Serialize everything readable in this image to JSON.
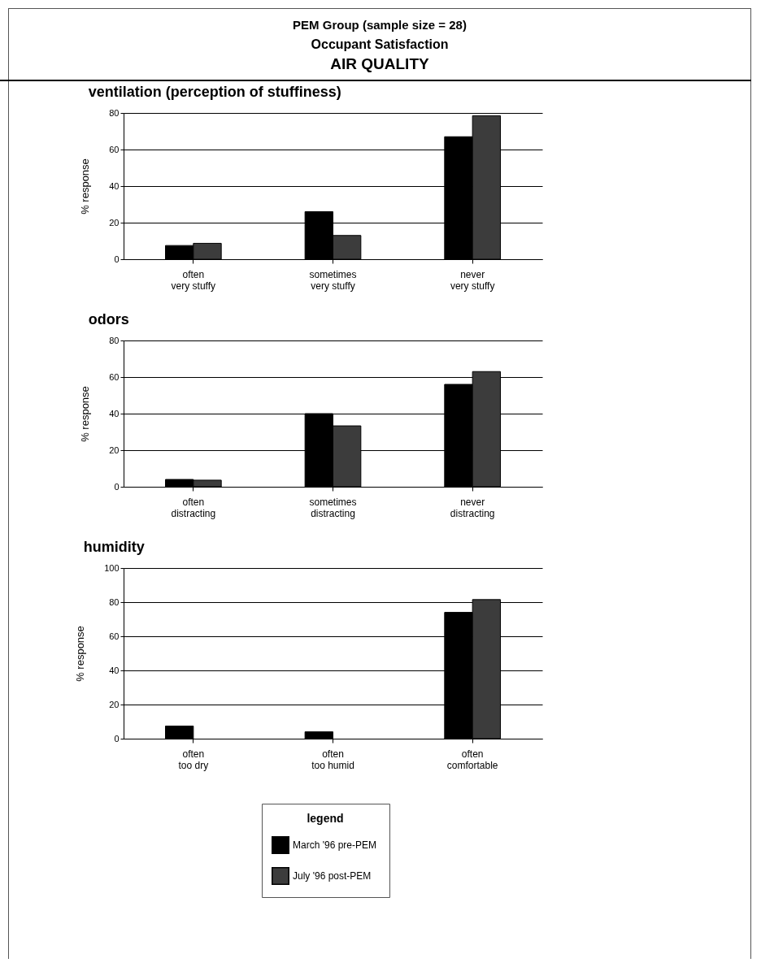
{
  "chart_data": [
    {
      "type": "bar",
      "title": "ventilation (perception of stuffiness)",
      "annotations": [
        "PEM Group (sample size = 28)",
        "Occupant Satisfaction",
        "AIR QUALITY"
      ],
      "ylabel": "%  response",
      "categories": [
        "often very stuffy",
        "sometimes very stuffy",
        "never very stuffy"
      ],
      "series": [
        {
          "color": "#000000",
          "values": [
            7.5,
            26,
            67
          ]
        },
        {
          "color": "#3c3c3c",
          "values": [
            8.7,
            13,
            78.5
          ]
        }
      ],
      "ylim": [
        0,
        80
      ],
      "yticks": [
        0,
        20,
        40,
        60,
        80
      ],
      "grid": "y"
    },
    {
      "type": "bar",
      "title": "odors",
      "ylabel": "%  response",
      "categories": [
        "often distracting",
        "sometimes distracting",
        "never distracting"
      ],
      "series": [
        {
          "color": "#000000",
          "values": [
            4,
            40,
            56
          ]
        },
        {
          "color": "#3c3c3c",
          "values": [
            3.6,
            33.3,
            63
          ]
        }
      ],
      "ylim": [
        0,
        80
      ],
      "yticks": [
        0,
        20,
        40,
        60,
        80
      ],
      "grid": "y"
    },
    {
      "type": "bar",
      "title": "humidity",
      "ylabel": "%  response",
      "legend_title": "legend",
      "categories": [
        "often too dry",
        "often too humid",
        "often comfortable"
      ],
      "series": [
        {
          "name": "March  '96 pre-PEM",
          "color": "#000000",
          "values": [
            7.4,
            4,
            74
          ]
        },
        {
          "name": "July '96 post-PEM",
          "color": "#3c3c3c",
          "values": [
            0,
            0,
            81.5
          ]
        }
      ],
      "ylim": [
        0,
        100
      ],
      "yticks": [
        0,
        20,
        40,
        60,
        80,
        100
      ],
      "grid": "y",
      "legend": "bottom"
    }
  ]
}
